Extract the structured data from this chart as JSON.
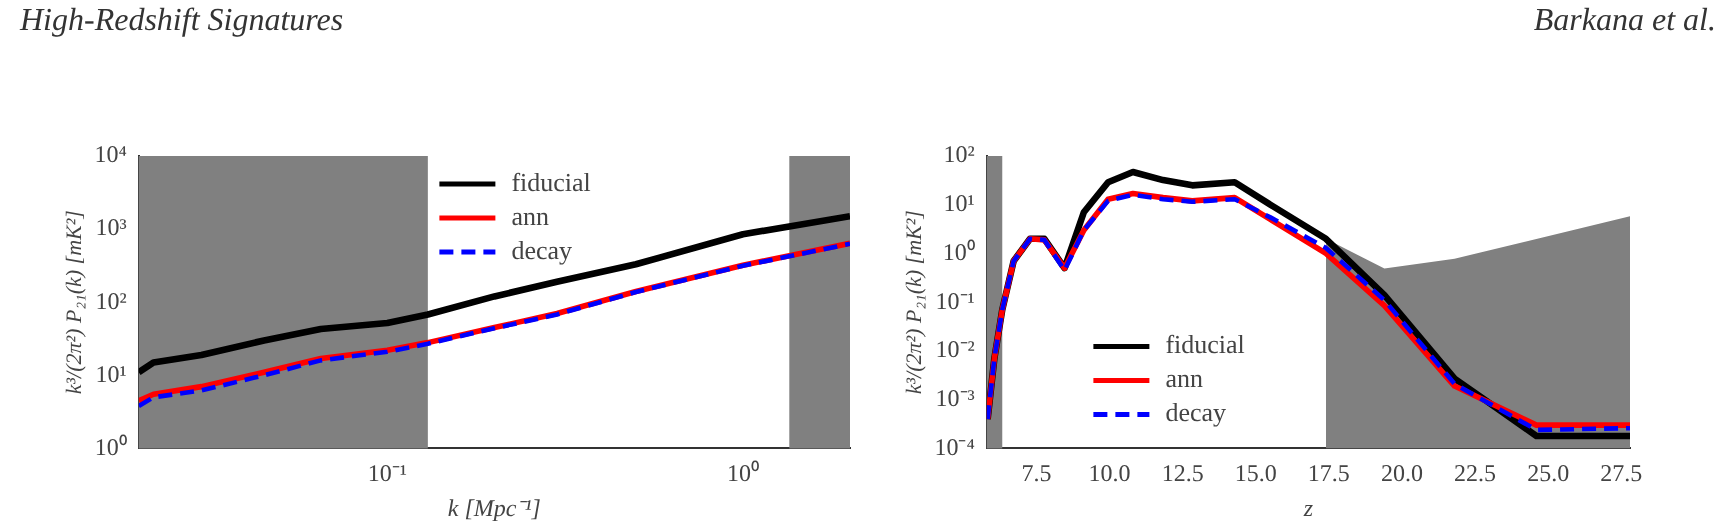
{
  "chart_data": [
    {
      "type": "line",
      "annotations": [
        "High-Redshift Signatures"
      ],
      "xlabel": "k [Mpc⁻¹]",
      "ylabel": "k³/(2π²) P₂₁(k) [mK²]",
      "log": "xy",
      "xlim": [
        0.02,
        2
      ],
      "xticks": [
        {
          "value": 0.1,
          "label": "10⁻¹"
        },
        {
          "value": 1,
          "label": "10⁰"
        }
      ],
      "ylim": [
        1,
        10000
      ],
      "yticks": [
        {
          "value": 1,
          "label": "10⁰"
        },
        {
          "value": 10,
          "label": "10¹"
        },
        {
          "value": 100,
          "label": "10²"
        },
        {
          "value": 1000,
          "label": "10³"
        },
        {
          "value": 10000,
          "label": "10⁴"
        }
      ],
      "legend": "top",
      "grid": false,
      "bands": [
        {
          "axis": "x",
          "from": 0.02,
          "to": 0.13,
          "color": "#808080"
        },
        {
          "axis": "x",
          "from": 1.35,
          "to": 2,
          "color": "#808080"
        }
      ],
      "x": [
        0.02,
        0.022,
        0.03,
        0.045,
        0.065,
        0.1,
        0.13,
        0.2,
        0.3,
        0.5,
        1,
        2
      ],
      "series": [
        {
          "name": "fiducial",
          "color": "#000000",
          "line_style": "solid",
          "values": [
            11,
            15,
            19,
            30,
            43,
            52,
            68,
            120,
            190,
            330,
            850,
            1500
          ]
        },
        {
          "name": "ann",
          "color": "#ff0000",
          "line_style": "solid",
          "values": [
            4.5,
            5.5,
            7,
            11,
            17,
            22,
            28,
            45,
            70,
            140,
            320,
            640
          ]
        },
        {
          "name": "decay",
          "color": "#0000ff",
          "line_style": "dashed",
          "values": [
            3.8,
            5,
            6.2,
            10,
            16,
            21,
            27,
            44,
            68,
            138,
            315,
            630
          ]
        }
      ]
    },
    {
      "type": "line",
      "annotations": [
        "Barkana et al."
      ],
      "xlabel": "z",
      "ylabel": "k³/(2π²) P₂₁(k) [mK²]",
      "log": "y",
      "xlim": [
        5.8,
        27.8
      ],
      "xticks": [
        {
          "value": 7.5,
          "label": "7.5"
        },
        {
          "value": 10,
          "label": "10.0"
        },
        {
          "value": 12.5,
          "label": "12.5"
        },
        {
          "value": 15,
          "label": "15.0"
        },
        {
          "value": 17.5,
          "label": "17.5"
        },
        {
          "value": 20,
          "label": "20.0"
        },
        {
          "value": 22.5,
          "label": "22.5"
        },
        {
          "value": 25,
          "label": "25.0"
        },
        {
          "value": 27.5,
          "label": "27.5"
        }
      ],
      "ylim": [
        0.0001,
        100
      ],
      "yticks": [
        {
          "value": 0.0001,
          "label": "10⁻⁴"
        },
        {
          "value": 0.001,
          "label": "10⁻³"
        },
        {
          "value": 0.01,
          "label": "10⁻²"
        },
        {
          "value": 0.1,
          "label": "10⁻¹"
        },
        {
          "value": 1,
          "label": "10⁰"
        },
        {
          "value": 10,
          "label": "10¹"
        },
        {
          "value": 100,
          "label": "10²"
        }
      ],
      "legend": "bottom",
      "grid": false,
      "bands": [
        {
          "axis": "x",
          "from": 5.8,
          "to": 6.33,
          "color": "#808080"
        }
      ],
      "x": [
        5.83,
        6.06,
        6.33,
        6.72,
        7.28,
        7.77,
        8.46,
        9.12,
        9.95,
        10.8,
        11.83,
        12.83,
        14.28,
        15.5,
        17.4,
        19.4,
        21.8,
        24.6,
        27.8
      ],
      "series": [
        {
          "type": "area",
          "color": "#808080",
          "x": [
            17.4,
            19.4,
            21.8,
            27.8
          ],
          "values": [
            2,
            0.49,
            0.78,
            5.8
          ]
        },
        {
          "name": "fiducial",
          "color": "#000000",
          "line_style": "solid",
          "values": [
            0.0004,
            0.007,
            0.07,
            0.7,
            2,
            2,
            0.5,
            7,
            29,
            47,
            32,
            25,
            29,
            10,
            2,
            0.14,
            0.0027,
            0.00018,
            0.00018
          ]
        },
        {
          "name": "ann",
          "color": "#ff0000",
          "line_style": "solid",
          "values": [
            0.0004,
            0.007,
            0.07,
            0.7,
            2,
            1.9,
            0.5,
            3,
            13,
            17,
            14,
            12,
            14,
            5,
            1,
            0.085,
            0.0019,
            0.0003,
            0.0003
          ]
        },
        {
          "name": "decay",
          "color": "#0000ff",
          "line_style": "dashed",
          "values": [
            0.0004,
            0.007,
            0.07,
            0.7,
            2,
            1.9,
            0.45,
            3,
            12,
            16,
            13,
            11.5,
            13,
            5.5,
            1.3,
            0.11,
            0.0021,
            0.00024,
            0.00026
          ]
        }
      ]
    }
  ]
}
